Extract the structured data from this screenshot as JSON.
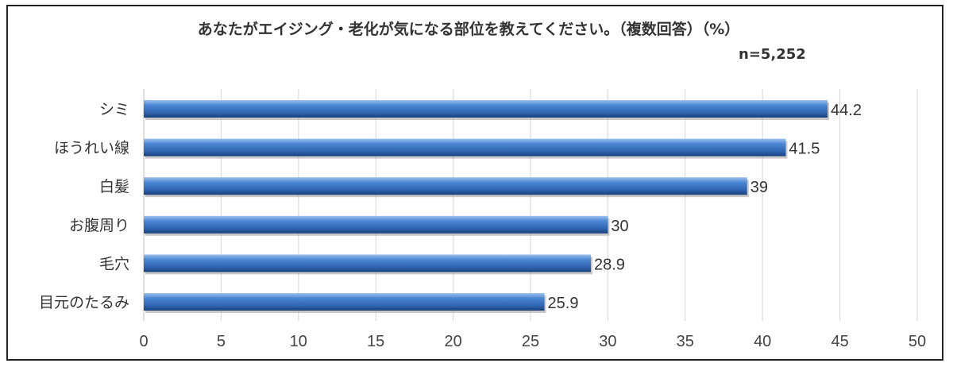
{
  "chart_data": {
    "type": "bar",
    "orientation": "horizontal",
    "title": "あなたがエイジング・老化が気になる部位を教えてください。（複数回答）（%）",
    "subtitle": "n=5,252",
    "categories": [
      "シミ",
      "ほうれい線",
      "白髪",
      "お腹周り",
      "毛穴",
      "目元のたるみ"
    ],
    "values": [
      44.2,
      41.5,
      39,
      30,
      28.9,
      25.9
    ],
    "value_labels": [
      "44.2",
      "41.5",
      "39",
      "30",
      "28.9",
      "25.9"
    ],
    "xlim": [
      0,
      50
    ],
    "x_ticks": [
      0,
      5,
      10,
      15,
      20,
      25,
      30,
      35,
      40,
      45,
      50
    ],
    "grid": true,
    "bar_color": "#3f77c4"
  }
}
